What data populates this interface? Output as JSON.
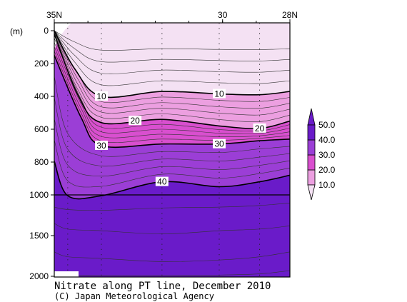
{
  "chart_data": {
    "type": "heatmap",
    "title": "Nitrate along PT line, December 2010",
    "credit": "(C) Japan Meteorological Agency",
    "y_unit_label": "(m)",
    "x_ticks": [
      {
        "value": 35,
        "label": "35N"
      },
      {
        "value": 30,
        "label": "30"
      },
      {
        "value": 28,
        "label": "28N"
      }
    ],
    "x_range": [
      35,
      28
    ],
    "y_ticks_upper": [
      0,
      200,
      400,
      600,
      800,
      1000
    ],
    "y_ticks_lower": [
      1500,
      2000
    ],
    "y_range_upper": [
      0,
      1000
    ],
    "y_range_lower": [
      1000,
      2000
    ],
    "station_lats": [
      35,
      34.6,
      33.6,
      31.8,
      30.1,
      28.9,
      28
    ],
    "colorbar": {
      "labels": [
        "10.0",
        "20.0",
        "30.0",
        "40.0",
        "50.0"
      ],
      "colors": [
        "#f4e1f3",
        "#ec9fe0",
        "#d94fcf",
        "#9b3ed6",
        "#6a1bc9"
      ]
    },
    "contours": [
      {
        "value": 10,
        "label": "10",
        "depths": [
          {
            "lat": 35,
            "depth": 0
          },
          {
            "lat": 34.4,
            "depth": 230
          },
          {
            "lat": 33.6,
            "depth": 400
          },
          {
            "lat": 31.8,
            "depth": 370
          },
          {
            "lat": 30.1,
            "depth": 385
          },
          {
            "lat": 28.9,
            "depth": 390
          },
          {
            "lat": 28,
            "depth": 370
          }
        ]
      },
      {
        "value": 20,
        "label": "20",
        "depths": [
          {
            "lat": 35,
            "depth": 20
          },
          {
            "lat": 34.3,
            "depth": 390
          },
          {
            "lat": 33.6,
            "depth": 560
          },
          {
            "lat": 31.8,
            "depth": 540
          },
          {
            "lat": 30.1,
            "depth": 580
          },
          {
            "lat": 28.9,
            "depth": 595
          },
          {
            "lat": 28,
            "depth": 550
          }
        ]
      },
      {
        "value": 30,
        "label": "30",
        "depths": [
          {
            "lat": 35,
            "depth": 150
          },
          {
            "lat": 34.2,
            "depth": 530
          },
          {
            "lat": 33.6,
            "depth": 700
          },
          {
            "lat": 31.8,
            "depth": 690
          },
          {
            "lat": 30.1,
            "depth": 690
          },
          {
            "lat": 28.9,
            "depth": 670
          },
          {
            "lat": 28,
            "depth": 660
          }
        ]
      },
      {
        "value": 40,
        "label": "40",
        "depths": [
          {
            "lat": 35,
            "depth": 795
          },
          {
            "lat": 34.6,
            "depth": 1010
          },
          {
            "lat": 33.6,
            "depth": 1010
          },
          {
            "lat": 31.8,
            "depth": 920
          },
          {
            "lat": 30.1,
            "depth": 950
          },
          {
            "lat": 28.9,
            "depth": 920
          },
          {
            "lat": 28,
            "depth": 880
          }
        ]
      }
    ],
    "grid": false
  }
}
